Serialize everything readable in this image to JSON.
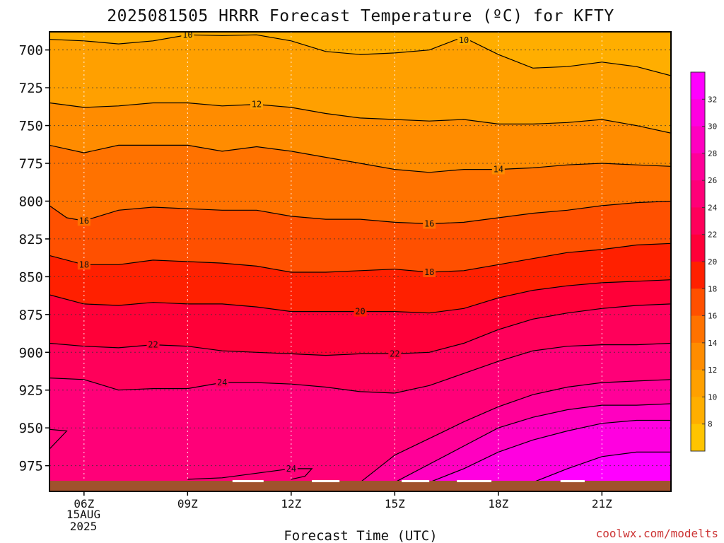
{
  "chart_data": {
    "type": "heatmap",
    "title": "2025081505 HRRR Forecast Temperature (ºC) for KFTY",
    "xlabel": "Forecast Time (UTC)",
    "ylabel": "",
    "credit": "coolwx.com/modelts",
    "date_label": [
      "15AUG",
      "2025"
    ],
    "x_ticks": [
      "06Z",
      "09Z",
      "12Z",
      "15Z",
      "18Z",
      "21Z"
    ],
    "x_hours": [
      5,
      23
    ],
    "y_ticks": [
      700,
      725,
      750,
      775,
      800,
      825,
      850,
      875,
      900,
      925,
      950,
      975
    ],
    "y_range_hpa": [
      688,
      992
    ],
    "surface_pressure_hpa": 985,
    "surface_color": "#a0522d",
    "grid": "dotted",
    "colorbar": {
      "ticks": [
        8,
        10,
        12,
        14,
        16,
        18,
        20,
        22,
        24,
        26,
        28,
        30,
        32
      ],
      "bands": [
        {
          "min": 6,
          "max": 8,
          "color": "#ffc400"
        },
        {
          "min": 8,
          "max": 10,
          "color": "#ffae00"
        },
        {
          "min": 10,
          "max": 12,
          "color": "#ffa000"
        },
        {
          "min": 12,
          "max": 14,
          "color": "#ff8c00"
        },
        {
          "min": 14,
          "max": 16,
          "color": "#ff7200"
        },
        {
          "min": 16,
          "max": 18,
          "color": "#ff5000"
        },
        {
          "min": 18,
          "max": 20,
          "color": "#ff2000"
        },
        {
          "min": 20,
          "max": 22,
          "color": "#ff0038"
        },
        {
          "min": 22,
          "max": 24,
          "color": "#ff005a"
        },
        {
          "min": 24,
          "max": 26,
          "color": "#ff0078"
        },
        {
          "min": 26,
          "max": 28,
          "color": "#ff0098"
        },
        {
          "min": 28,
          "max": 30,
          "color": "#ff00c0"
        },
        {
          "min": 30,
          "max": 32,
          "color": "#ff00e0"
        },
        {
          "min": 32,
          "max": 34,
          "color": "#ff00ff"
        }
      ]
    },
    "isotherms": [
      {
        "level": 10,
        "label": "10",
        "points": [
          [
            5,
            693
          ],
          [
            6,
            694
          ],
          [
            7,
            696
          ],
          [
            8,
            694
          ],
          [
            9,
            690
          ],
          [
            10,
            690.5
          ],
          [
            11,
            690
          ],
          [
            12,
            694
          ],
          [
            13,
            701
          ],
          [
            14,
            703
          ],
          [
            15,
            702
          ],
          [
            16,
            700
          ],
          [
            16.8,
            693
          ],
          [
            17.2,
            694
          ],
          [
            18,
            703
          ],
          [
            19,
            712
          ],
          [
            20,
            711
          ],
          [
            21,
            708
          ],
          [
            22,
            711
          ],
          [
            23,
            717
          ]
        ]
      },
      {
        "level": 12,
        "label": "12",
        "points": [
          [
            5,
            735
          ],
          [
            6,
            738
          ],
          [
            7,
            737
          ],
          [
            8,
            735
          ],
          [
            9,
            735
          ],
          [
            10,
            737
          ],
          [
            11,
            736
          ],
          [
            12,
            738
          ],
          [
            13,
            742
          ],
          [
            14,
            745
          ],
          [
            15,
            746
          ],
          [
            16,
            747
          ],
          [
            17,
            746
          ],
          [
            18,
            749
          ],
          [
            19,
            749
          ],
          [
            20,
            748
          ],
          [
            21,
            746
          ],
          [
            22,
            750
          ],
          [
            23,
            755
          ]
        ]
      },
      {
        "level": 14,
        "label": "14",
        "points": [
          [
            5,
            763
          ],
          [
            6,
            768
          ],
          [
            7,
            763
          ],
          [
            8,
            763
          ],
          [
            9,
            763
          ],
          [
            10,
            767
          ],
          [
            11,
            764
          ],
          [
            12,
            767
          ],
          [
            13,
            771
          ],
          [
            14,
            775
          ],
          [
            15,
            779
          ],
          [
            16,
            781
          ],
          [
            17,
            779
          ],
          [
            18,
            779
          ],
          [
            19,
            778
          ],
          [
            20,
            776
          ],
          [
            21,
            775
          ],
          [
            22,
            776
          ],
          [
            23,
            777
          ]
        ]
      },
      {
        "level": 16,
        "label": "16",
        "points": [
          [
            5,
            803
          ],
          [
            5.5,
            811
          ],
          [
            6,
            813
          ],
          [
            7,
            806
          ],
          [
            8,
            804
          ],
          [
            9,
            805
          ],
          [
            10,
            806
          ],
          [
            11,
            806
          ],
          [
            12,
            810
          ],
          [
            13,
            812
          ],
          [
            14,
            812
          ],
          [
            15,
            814
          ],
          [
            16,
            815
          ],
          [
            17,
            814
          ],
          [
            18,
            811
          ],
          [
            19,
            808
          ],
          [
            20,
            806
          ],
          [
            21,
            803
          ],
          [
            22,
            801
          ],
          [
            23,
            800
          ]
        ]
      },
      {
        "level": 18,
        "label": "18",
        "points": [
          [
            5,
            836
          ],
          [
            6,
            842
          ],
          [
            7,
            842
          ],
          [
            8,
            839
          ],
          [
            9,
            840
          ],
          [
            10,
            841
          ],
          [
            11,
            843
          ],
          [
            12,
            847
          ],
          [
            13,
            847
          ],
          [
            14,
            846
          ],
          [
            15,
            845
          ],
          [
            16,
            847
          ],
          [
            17,
            846
          ],
          [
            18,
            842
          ],
          [
            19,
            838
          ],
          [
            20,
            834
          ],
          [
            21,
            832
          ],
          [
            22,
            829
          ],
          [
            23,
            828
          ]
        ]
      },
      {
        "level": 20,
        "label": "20",
        "points": [
          [
            5,
            862
          ],
          [
            6,
            868
          ],
          [
            7,
            869
          ],
          [
            8,
            867
          ],
          [
            9,
            868
          ],
          [
            10,
            868
          ],
          [
            11,
            870
          ],
          [
            12,
            873
          ],
          [
            13,
            873
          ],
          [
            14,
            873
          ],
          [
            15,
            873
          ],
          [
            16,
            874
          ],
          [
            17,
            871
          ],
          [
            18,
            864
          ],
          [
            19,
            859
          ],
          [
            20,
            856
          ],
          [
            21,
            854
          ],
          [
            22,
            853
          ],
          [
            23,
            852
          ]
        ]
      },
      {
        "level": 22,
        "label": "22",
        "points": [
          [
            5,
            894
          ],
          [
            6,
            896
          ],
          [
            7,
            897
          ],
          [
            8,
            895
          ],
          [
            9,
            896
          ],
          [
            10,
            899
          ],
          [
            11,
            900
          ],
          [
            12,
            901
          ],
          [
            13,
            902
          ],
          [
            14,
            901
          ],
          [
            15,
            901
          ],
          [
            16,
            900
          ],
          [
            17,
            894
          ],
          [
            18,
            885
          ],
          [
            19,
            878
          ],
          [
            20,
            874
          ],
          [
            21,
            871
          ],
          [
            22,
            869
          ],
          [
            23,
            868
          ]
        ]
      },
      {
        "level": 24,
        "label": "24",
        "points": [
          [
            5,
            917
          ],
          [
            6,
            918
          ],
          [
            7,
            925
          ],
          [
            8,
            924
          ],
          [
            9,
            924
          ],
          [
            10,
            920
          ],
          [
            11,
            920
          ],
          [
            12,
            921
          ],
          [
            13,
            923
          ],
          [
            14,
            926
          ],
          [
            15,
            927
          ],
          [
            16,
            922
          ],
          [
            17,
            914
          ],
          [
            18,
            906
          ],
          [
            19,
            899
          ],
          [
            20,
            896
          ],
          [
            21,
            895
          ],
          [
            22,
            895
          ],
          [
            23,
            894
          ]
        ]
      },
      {
        "level": 26,
        "label": "",
        "points": [
          [
            14,
            986
          ],
          [
            15,
            968
          ],
          [
            16,
            957
          ],
          [
            17,
            946
          ],
          [
            18,
            936
          ],
          [
            19,
            928
          ],
          [
            20,
            923
          ],
          [
            21,
            920
          ],
          [
            22,
            919
          ],
          [
            23,
            918
          ]
        ]
      },
      {
        "level": 28,
        "label": "",
        "points": [
          [
            15,
            986
          ],
          [
            16,
            974
          ],
          [
            17,
            962
          ],
          [
            18,
            950
          ],
          [
            19,
            943
          ],
          [
            20,
            938
          ],
          [
            21,
            935
          ],
          [
            22,
            935
          ],
          [
            23,
            934
          ]
        ]
      },
      {
        "level": 30,
        "label": "",
        "points": [
          [
            16,
            986
          ],
          [
            17,
            977
          ],
          [
            18,
            966
          ],
          [
            19,
            958
          ],
          [
            20,
            952
          ],
          [
            21,
            947
          ],
          [
            22,
            945
          ],
          [
            23,
            945
          ]
        ]
      },
      {
        "level": 32,
        "label": "",
        "points": [
          [
            19,
            986
          ],
          [
            20,
            977
          ],
          [
            21,
            969
          ],
          [
            22,
            966
          ],
          [
            23,
            966
          ]
        ]
      }
    ],
    "extra_contours": [
      {
        "label": "24",
        "label_at": [
          12.0,
          977
        ],
        "points": [
          [
            9.0,
            984
          ],
          [
            10,
            983
          ],
          [
            11,
            980
          ],
          [
            12,
            977
          ],
          [
            12.6,
            977
          ],
          [
            12.4,
            982
          ],
          [
            12.0,
            984
          ]
        ]
      },
      {
        "label": "",
        "label_at": null,
        "points": [
          [
            5,
            951
          ],
          [
            5.5,
            952
          ],
          [
            5.0,
            964
          ]
        ]
      }
    ]
  }
}
